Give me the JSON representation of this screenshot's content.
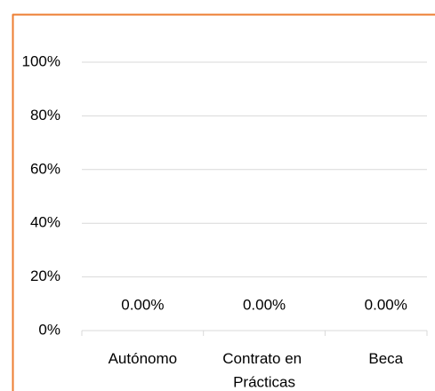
{
  "chart_data": {
    "type": "bar",
    "categories": [
      "Autónomo",
      "Contrato en Prácticas",
      "Beca"
    ],
    "values": [
      0,
      0,
      0
    ],
    "value_labels": [
      "0.00%",
      "0.00%",
      "0.00%"
    ],
    "color": "#4472c4",
    "ylim": [
      0,
      100
    ],
    "yticks": [
      {
        "value": 0,
        "label": "0%"
      },
      {
        "value": 20,
        "label": "20%"
      },
      {
        "value": 40,
        "label": "40%"
      },
      {
        "value": 60,
        "label": "60%"
      },
      {
        "value": 80,
        "label": "80%"
      },
      {
        "value": 100,
        "label": "100%"
      }
    ],
    "grid": true
  }
}
